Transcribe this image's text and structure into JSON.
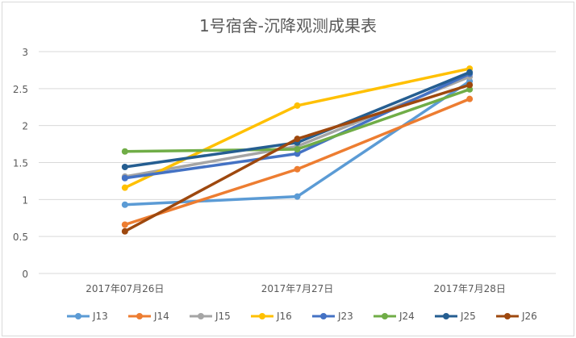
{
  "chart_data": {
    "type": "line",
    "title": "1号宿舍-沉降观测成果表",
    "xlabel": "",
    "ylabel": "",
    "categories": [
      "2017年07月26日",
      "2017年7月27日",
      "2017年7月28日"
    ],
    "ylim": [
      0,
      3
    ],
    "yticks": [
      "0",
      "0.5",
      "1",
      "1.5",
      "2",
      "2.5",
      "3"
    ],
    "grid": true,
    "legend": "bottom",
    "series": [
      {
        "name": "J13",
        "color": "#5b9bd5",
        "values": [
          0.93,
          1.04,
          2.6
        ]
      },
      {
        "name": "J14",
        "color": "#ed7d31",
        "values": [
          0.66,
          1.41,
          2.36
        ]
      },
      {
        "name": "J15",
        "color": "#a5a5a5",
        "values": [
          1.31,
          1.72,
          2.66
        ]
      },
      {
        "name": "J16",
        "color": "#ffc000",
        "values": [
          1.16,
          2.27,
          2.77
        ]
      },
      {
        "name": "J23",
        "color": "#4472c4",
        "values": [
          1.29,
          1.62,
          2.7
        ]
      },
      {
        "name": "J24",
        "color": "#70ad47",
        "values": [
          1.65,
          1.68,
          2.49
        ]
      },
      {
        "name": "J25",
        "color": "#255e91",
        "values": [
          1.44,
          1.77,
          2.72
        ]
      },
      {
        "name": "J26",
        "color": "#9e480e",
        "values": [
          0.57,
          1.82,
          2.55
        ]
      }
    ]
  }
}
